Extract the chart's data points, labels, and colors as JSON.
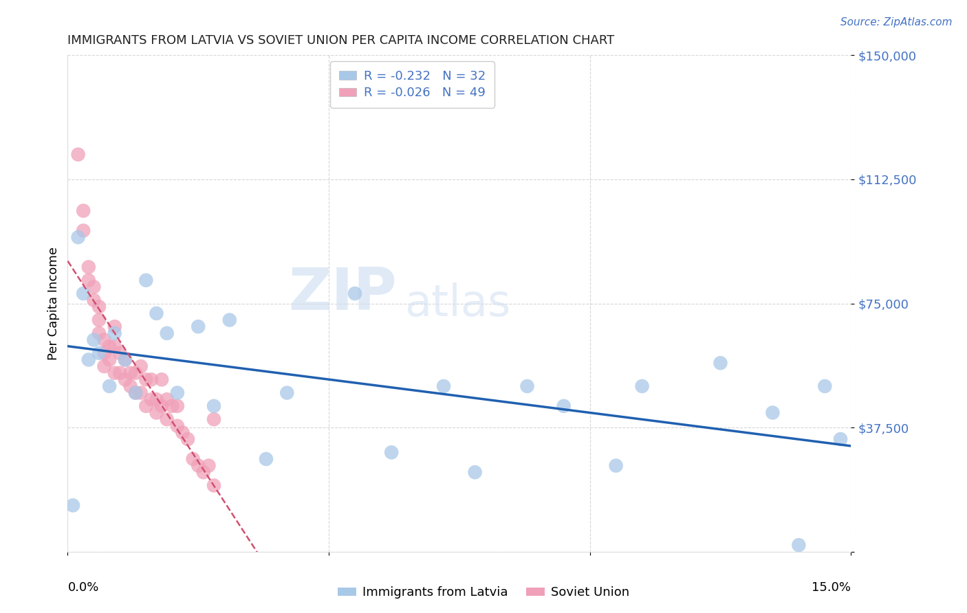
{
  "title": "IMMIGRANTS FROM LATVIA VS SOVIET UNION PER CAPITA INCOME CORRELATION CHART",
  "source": "Source: ZipAtlas.com",
  "ylabel": "Per Capita Income",
  "yticks": [
    0,
    37500,
    75000,
    112500,
    150000
  ],
  "ytick_labels": [
    "",
    "$37,500",
    "$75,000",
    "$112,500",
    "$150,000"
  ],
  "xlim": [
    0.0,
    0.15
  ],
  "ylim": [
    0,
    150000
  ],
  "legend_label_1": "Immigrants from Latvia",
  "legend_label_2": "Soviet Union",
  "legend_r1": "R = -0.232",
  "legend_n1": "N = 32",
  "legend_r2": "R = -0.026",
  "legend_n2": "N = 49",
  "color_latvia": "#a8c8e8",
  "color_soviet": "#f0a0b8",
  "color_latvia_line": "#2060b0",
  "color_soviet_line": "#d05070",
  "watermark_zip": "ZIP",
  "watermark_atlas": "atlas",
  "latvia_x": [
    0.001,
    0.002,
    0.003,
    0.004,
    0.005,
    0.006,
    0.008,
    0.009,
    0.011,
    0.013,
    0.015,
    0.017,
    0.019,
    0.021,
    0.025,
    0.028,
    0.031,
    0.038,
    0.042,
    0.055,
    0.062,
    0.072,
    0.078,
    0.088,
    0.095,
    0.105,
    0.11,
    0.125,
    0.135,
    0.14,
    0.145,
    0.148
  ],
  "latvia_y": [
    14000,
    95000,
    78000,
    58000,
    64000,
    60000,
    50000,
    66000,
    58000,
    48000,
    82000,
    72000,
    66000,
    48000,
    68000,
    44000,
    70000,
    28000,
    48000,
    78000,
    30000,
    50000,
    24000,
    50000,
    44000,
    26000,
    50000,
    57000,
    42000,
    2000,
    50000,
    34000
  ],
  "soviet_x": [
    0.002,
    0.003,
    0.003,
    0.004,
    0.004,
    0.005,
    0.005,
    0.006,
    0.006,
    0.006,
    0.007,
    0.007,
    0.007,
    0.008,
    0.008,
    0.009,
    0.009,
    0.009,
    0.01,
    0.01,
    0.011,
    0.011,
    0.012,
    0.012,
    0.013,
    0.013,
    0.014,
    0.014,
    0.015,
    0.015,
    0.016,
    0.016,
    0.017,
    0.017,
    0.018,
    0.018,
    0.019,
    0.019,
    0.02,
    0.021,
    0.021,
    0.022,
    0.023,
    0.024,
    0.025,
    0.026,
    0.027,
    0.028,
    0.028
  ],
  "soviet_y": [
    120000,
    103000,
    97000,
    86000,
    82000,
    80000,
    76000,
    74000,
    70000,
    66000,
    64000,
    60000,
    56000,
    62000,
    58000,
    68000,
    62000,
    54000,
    60000,
    54000,
    58000,
    52000,
    54000,
    50000,
    54000,
    48000,
    56000,
    48000,
    52000,
    44000,
    52000,
    46000,
    46000,
    42000,
    52000,
    44000,
    46000,
    40000,
    44000,
    44000,
    38000,
    36000,
    34000,
    28000,
    26000,
    24000,
    26000,
    20000,
    40000
  ]
}
